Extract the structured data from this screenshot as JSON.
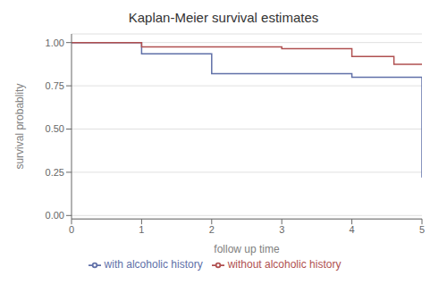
{
  "chart_data": {
    "type": "line",
    "title": "Kaplan-Meier survival estimates",
    "xlabel": "follow up time",
    "ylabel": "survival probablity",
    "xlim": [
      0,
      5
    ],
    "ylim": [
      -0.02,
      1.05
    ],
    "xticks": [
      0,
      1,
      2,
      3,
      4,
      5
    ],
    "yticks": [
      {
        "value": 0,
        "label": "0.00"
      },
      0.25,
      {
        "value": 0.5,
        "label": "0.50"
      },
      0.75,
      {
        "value": 1,
        "label": "1.00"
      }
    ],
    "grid": "y",
    "legend": "bottom",
    "series": [
      {
        "name": "with alcoholic history",
        "color": "#6070a8",
        "x": [
          0,
          1.0,
          1.0,
          2.0,
          2.0,
          4.0,
          4.0,
          5.0,
          5.0
        ],
        "values": [
          1.0,
          1.0,
          0.935,
          0.935,
          0.82,
          0.82,
          0.8,
          0.8,
          0.22
        ]
      },
      {
        "name": "without alcoholic history",
        "color": "#b05050",
        "x": [
          0,
          1.0,
          1.0,
          3.0,
          3.0,
          4.0,
          4.0,
          4.6,
          4.6,
          5.0
        ],
        "values": [
          1.0,
          1.0,
          0.975,
          0.975,
          0.965,
          0.965,
          0.92,
          0.92,
          0.875,
          0.875
        ]
      }
    ]
  }
}
